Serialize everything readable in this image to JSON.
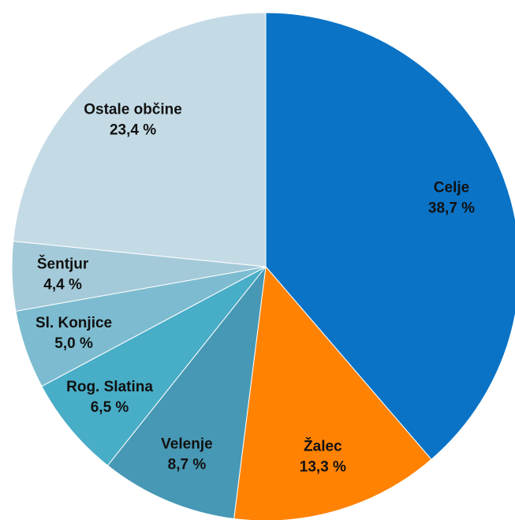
{
  "chart_data": {
    "type": "pie",
    "categories": [
      "Celje",
      "Žalec",
      "Velenje",
      "Rog. Slatina",
      "Sl. Konjice",
      "Šentjur",
      "Ostale občine"
    ],
    "values": [
      38.7,
      13.3,
      8.7,
      6.5,
      5.0,
      4.4,
      23.4
    ],
    "value_labels": [
      "38,7 %",
      "13,3 %",
      "8,7 %",
      "6,5 %",
      "5,0 %",
      "4,4 %",
      "23,4 %"
    ],
    "colors": [
      "#0a73c6",
      "#ff8203",
      "#4798b5",
      "#48adc7",
      "#7dbcd0",
      "#a4cad9",
      "#c4dbe6"
    ]
  }
}
